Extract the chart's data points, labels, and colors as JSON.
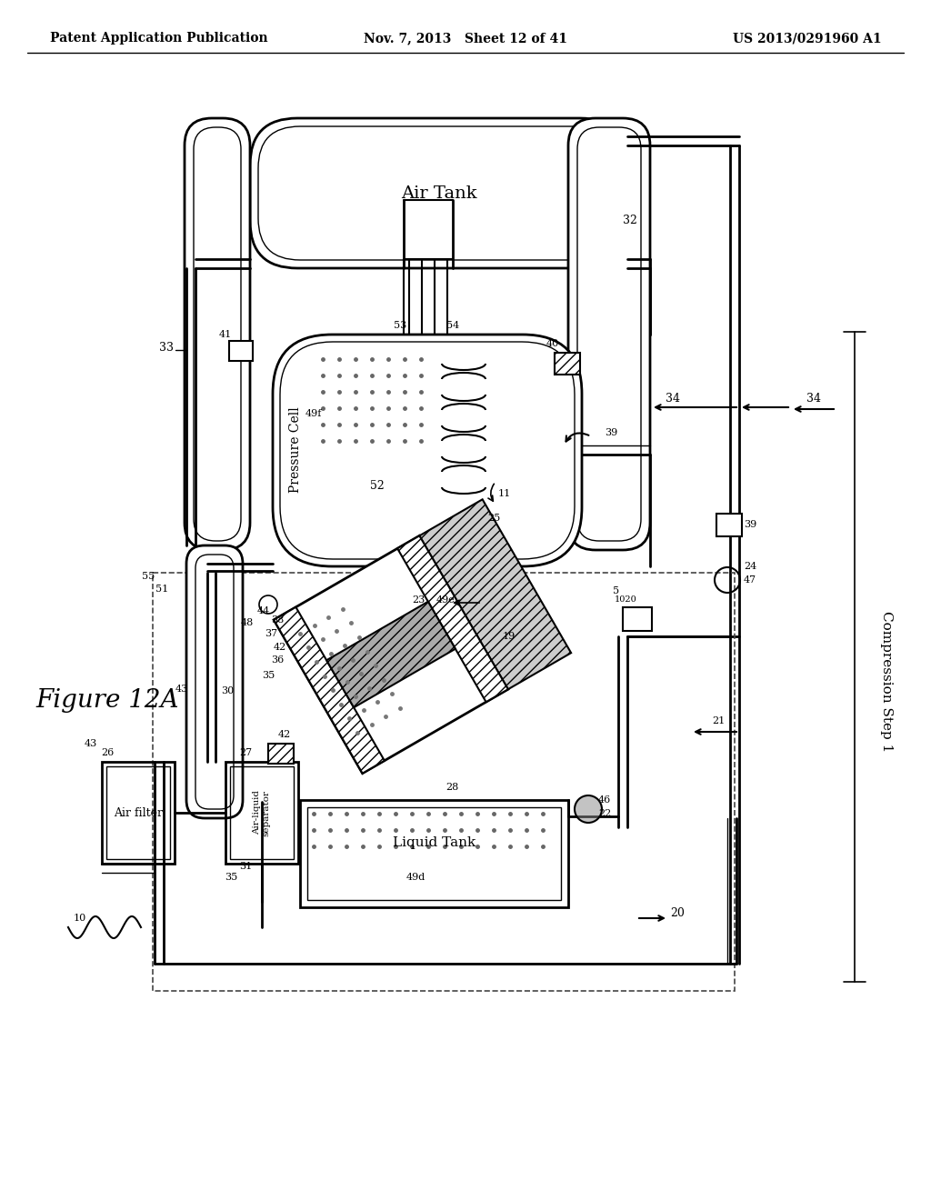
{
  "bg": "#ffffff",
  "header_left": "Patent Application Publication",
  "header_mid": "Nov. 7, 2013   Sheet 12 of 41",
  "header_right": "US 2013/0291960 A1",
  "fig_label": "Figure 12A",
  "comp_label": "Compression Step 1"
}
